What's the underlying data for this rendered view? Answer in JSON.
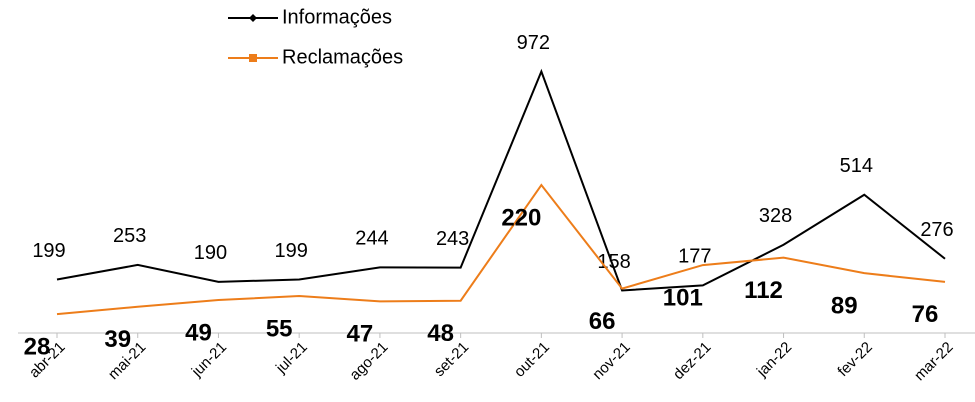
{
  "chart_data": {
    "type": "line",
    "categories": [
      "abr-21",
      "mai-21",
      "jun-21",
      "jul-21",
      "ago-21",
      "set-21",
      "out-21",
      "nov-21",
      "dez-21",
      "jan-22",
      "fev-22",
      "mar-22"
    ],
    "series": [
      {
        "name": "Informações",
        "color": "#000000",
        "values": [
          199,
          253,
          190,
          199,
          244,
          243,
          972,
          158,
          177,
          328,
          514,
          276
        ]
      },
      {
        "name": "Reclamações",
        "color": "#ed7d1a",
        "axis": "y2",
        "values": [
          28,
          39,
          49,
          55,
          47,
          48,
          220,
          66,
          101,
          112,
          89,
          76
        ]
      }
    ],
    "ylim": [
      0,
      1000
    ],
    "y2lim": [
      0,
      400
    ],
    "legend": "top"
  }
}
